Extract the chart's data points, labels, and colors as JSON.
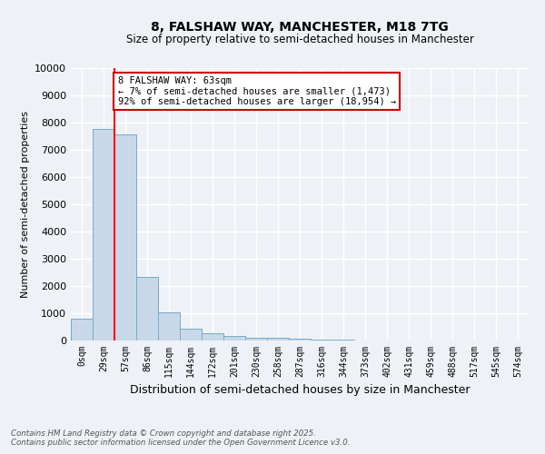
{
  "title_line1": "8, FALSHAW WAY, MANCHESTER, M18 7TG",
  "title_line2": "Size of property relative to semi-detached houses in Manchester",
  "xlabel": "Distribution of semi-detached houses by size in Manchester",
  "ylabel": "Number of semi-detached properties",
  "categories": [
    "0sqm",
    "29sqm",
    "57sqm",
    "86sqm",
    "115sqm",
    "144sqm",
    "172sqm",
    "201sqm",
    "230sqm",
    "258sqm",
    "287sqm",
    "316sqm",
    "344sqm",
    "373sqm",
    "402sqm",
    "431sqm",
    "459sqm",
    "488sqm",
    "517sqm",
    "545sqm",
    "574sqm"
  ],
  "values": [
    800,
    7780,
    7580,
    2350,
    1040,
    450,
    270,
    160,
    105,
    85,
    60,
    30,
    18,
    10,
    6,
    4,
    3,
    2,
    1,
    1,
    0
  ],
  "bar_color": "#c8d8e8",
  "bar_edge_color": "#7aaac8",
  "red_line_x": 1.5,
  "annotation_text": "8 FALSHAW WAY: 63sqm\n← 7% of semi-detached houses are smaller (1,473)\n92% of semi-detached houses are larger (18,954) →",
  "annotation_box_color": "#ffffff",
  "annotation_box_edge": "#cc0000",
  "ylim": [
    0,
    10000
  ],
  "yticks": [
    0,
    1000,
    2000,
    3000,
    4000,
    5000,
    6000,
    7000,
    8000,
    9000,
    10000
  ],
  "footer_line1": "Contains HM Land Registry data © Crown copyright and database right 2025.",
  "footer_line2": "Contains public sector information licensed under the Open Government Licence v3.0.",
  "background_color": "#eef2f6",
  "grid_color": "#ffffff"
}
